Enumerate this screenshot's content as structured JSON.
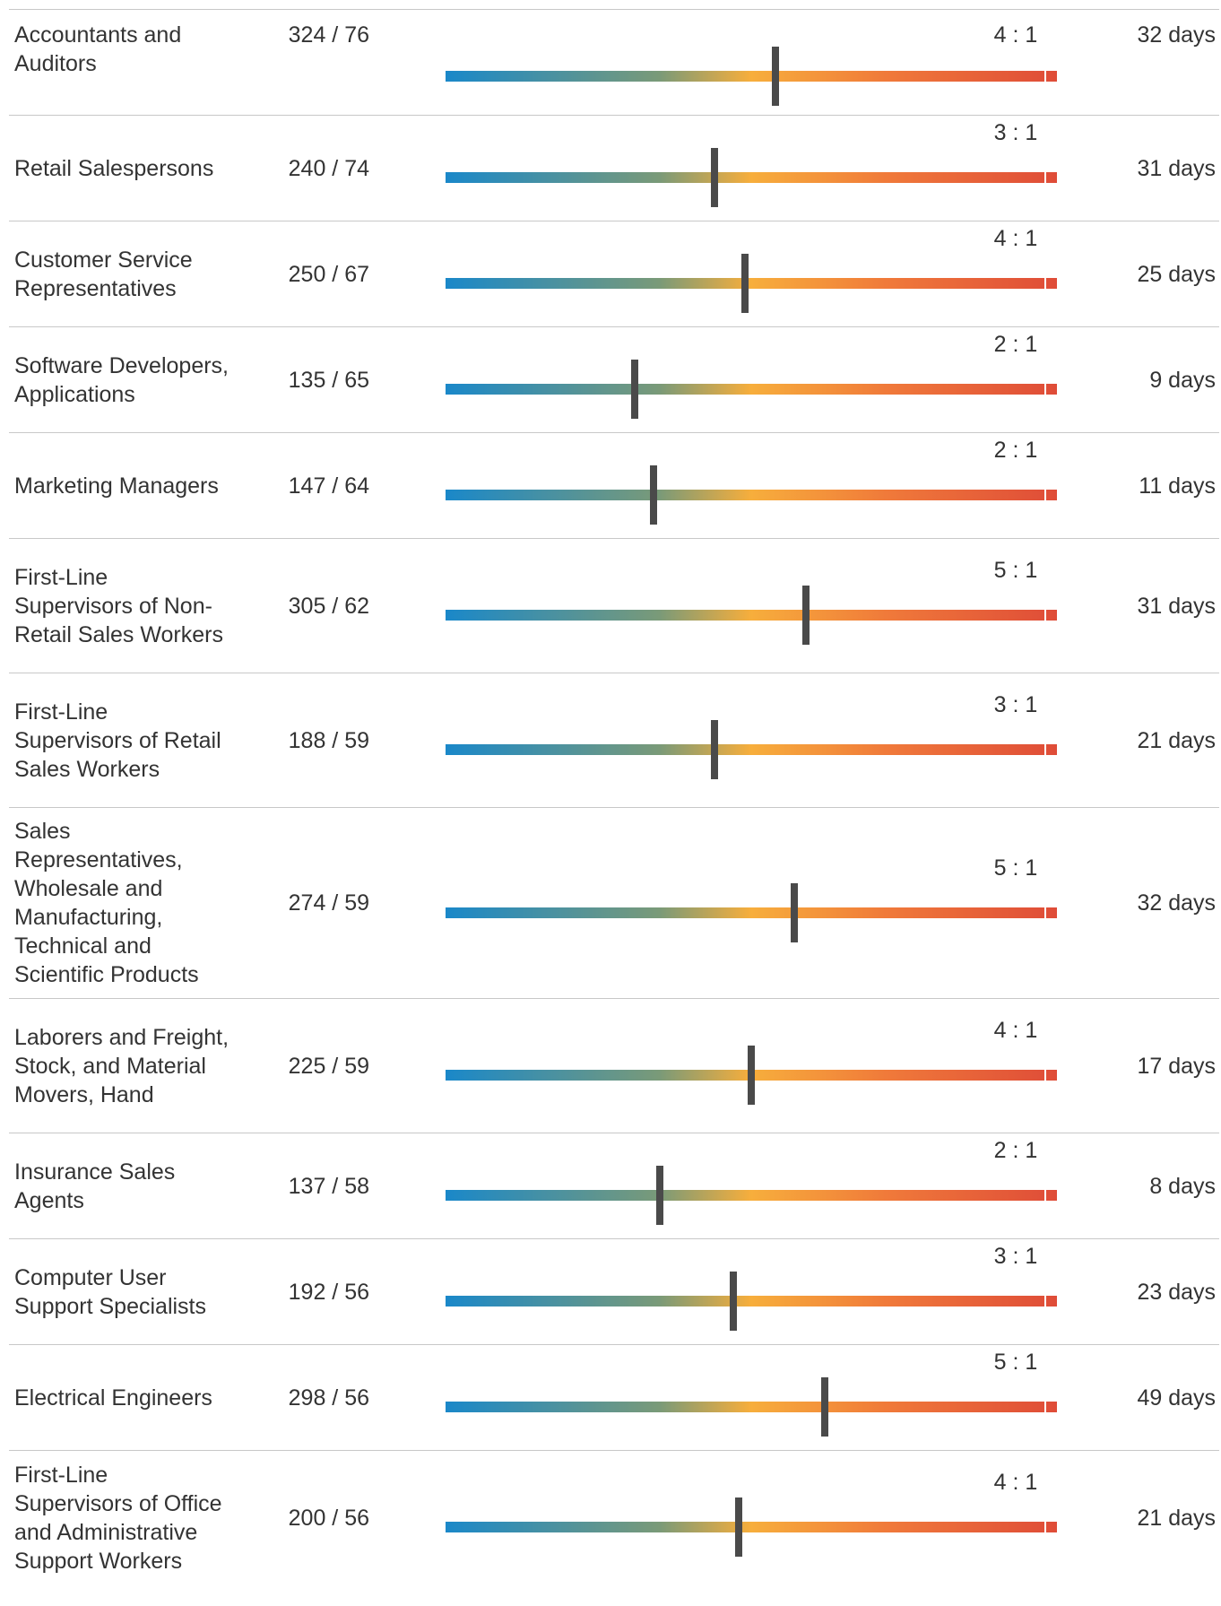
{
  "colors": {
    "gradient": [
      "#1a88c9",
      "#7a9a78",
      "#f7ae3c",
      "#f07a3a",
      "#df4c38"
    ],
    "marker": "#4a4a4a",
    "divider": "#c8c8c8",
    "text": "#333333"
  },
  "chart_data": {
    "type": "table",
    "columns": [
      "occupation",
      "counts",
      "ratio",
      "marker_position",
      "days"
    ],
    "rows": [
      {
        "occupation": "Accountants and Auditors",
        "counts": "324 / 76",
        "ratio": "4 : 1",
        "marker_position": 0.54,
        "days": "32 days"
      },
      {
        "occupation": "Retail Salespersons",
        "counts": "240 / 74",
        "ratio": "3 : 1",
        "marker_position": 0.44,
        "days": "31 days"
      },
      {
        "occupation": "Customer Service Representatives",
        "counts": "250 / 67",
        "ratio": "4 : 1",
        "marker_position": 0.49,
        "days": "25 days"
      },
      {
        "occupation": "Software Developers, Applications",
        "counts": "135 / 65",
        "ratio": "2 : 1",
        "marker_position": 0.31,
        "days": "9 days"
      },
      {
        "occupation": "Marketing Managers",
        "counts": "147 / 64",
        "ratio": "2 : 1",
        "marker_position": 0.34,
        "days": "11 days"
      },
      {
        "occupation": "First-Line Supervisors of Non-Retail Sales Workers",
        "counts": "305 / 62",
        "ratio": "5 : 1",
        "marker_position": 0.59,
        "days": "31 days"
      },
      {
        "occupation": "First-Line Supervisors of Retail Sales Workers",
        "counts": "188 / 59",
        "ratio": "3 : 1",
        "marker_position": 0.44,
        "days": "21 days"
      },
      {
        "occupation": "Sales Representatives, Wholesale and Manufacturing, Technical and Scientific Products",
        "counts": "274 / 59",
        "ratio": "5 : 1",
        "marker_position": 0.57,
        "days": "32 days"
      },
      {
        "occupation": "Laborers and Freight, Stock, and Material Movers, Hand",
        "counts": "225 / 59",
        "ratio": "4 : 1",
        "marker_position": 0.5,
        "days": "17 days"
      },
      {
        "occupation": "Insurance Sales Agents",
        "counts": "137 / 58",
        "ratio": "2 : 1",
        "marker_position": 0.35,
        "days": "8 days"
      },
      {
        "occupation": "Computer User Support Specialists",
        "counts": "192 / 56",
        "ratio": "3 : 1",
        "marker_position": 0.47,
        "days": "23 days"
      },
      {
        "occupation": "Electrical Engineers",
        "counts": "298 / 56",
        "ratio": "5 : 1",
        "marker_position": 0.62,
        "days": "49 days"
      },
      {
        "occupation": "First-Line Supervisors of Office and Administrative Support Workers",
        "counts": "200 / 56",
        "ratio": "4 : 1",
        "marker_position": 0.48,
        "days": "21 days"
      }
    ]
  }
}
